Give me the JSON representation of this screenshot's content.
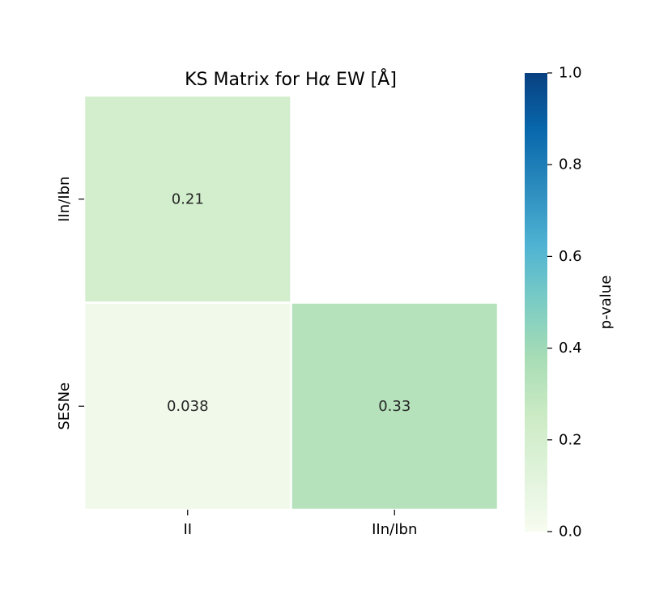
{
  "chart_data": {
    "type": "heatmap",
    "title_prefix": "KS Matrix for H",
    "title_symbol": "α",
    "title_suffix": " EW [Å]",
    "x_categories": [
      "II",
      "IIn/Ibn"
    ],
    "y_categories": [
      "IIn/Ibn",
      "SESNe"
    ],
    "cells": [
      {
        "row": 0,
        "col": 0,
        "value": 0.21,
        "label": "0.21"
      },
      {
        "row": 1,
        "col": 0,
        "value": 0.038,
        "label": "0.038"
      },
      {
        "row": 1,
        "col": 1,
        "value": 0.33,
        "label": "0.33"
      }
    ],
    "masked_cells": [
      {
        "row": 0,
        "col": 1
      }
    ],
    "colorbar": {
      "label": "p-value",
      "vmin": 0.0,
      "vmax": 1.0,
      "ticks": [
        "0.0",
        "0.2",
        "0.4",
        "0.6",
        "0.8",
        "1.0"
      ],
      "colormap": "GnBu",
      "colormap_stops": [
        "#f7fcf0",
        "#e0f3db",
        "#ccebc5",
        "#a8ddb5",
        "#7bccc4",
        "#4eb3d3",
        "#2b8cbe",
        "#0868ac",
        "#084081"
      ]
    }
  }
}
